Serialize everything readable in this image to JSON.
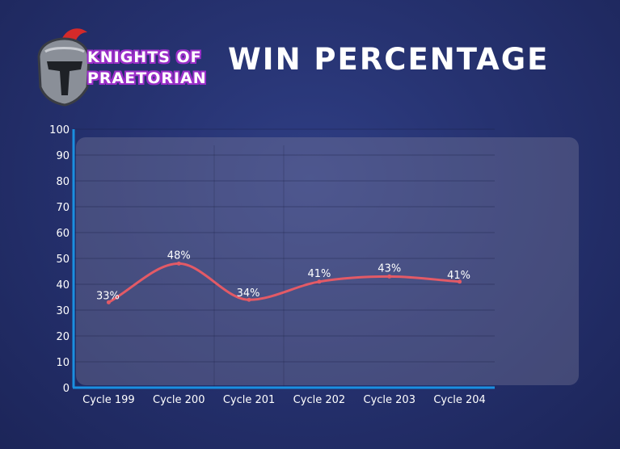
{
  "logo": {
    "line1": "KNIGHTS OF",
    "line2": "PRAETORIAN"
  },
  "title": "WIN PERCENTAGE",
  "colors": {
    "line": "#e35a66",
    "axis": "#1a8fe0",
    "label": "#ffffff",
    "logo_outline": "#9b2fc9",
    "helmet_plume": "#d42a2a"
  },
  "chart_data": {
    "type": "line",
    "title": "WIN PERCENTAGE",
    "xlabel": "",
    "ylabel": "",
    "categories": [
      "Cycle 199",
      "Cycle 200",
      "Cycle 201",
      "Cycle 202",
      "Cycle 203",
      "Cycle 204"
    ],
    "series": [
      {
        "values": [
          33,
          48,
          34,
          41,
          43,
          41
        ]
      }
    ],
    "data_labels": [
      "33%",
      "48%",
      "34%",
      "41%",
      "43%",
      "41%"
    ],
    "ylim": [
      0,
      100
    ],
    "yticks": [
      0,
      10,
      20,
      30,
      40,
      50,
      60,
      70,
      80,
      90,
      100
    ],
    "grid": true,
    "legend": "none",
    "smooth": true
  }
}
